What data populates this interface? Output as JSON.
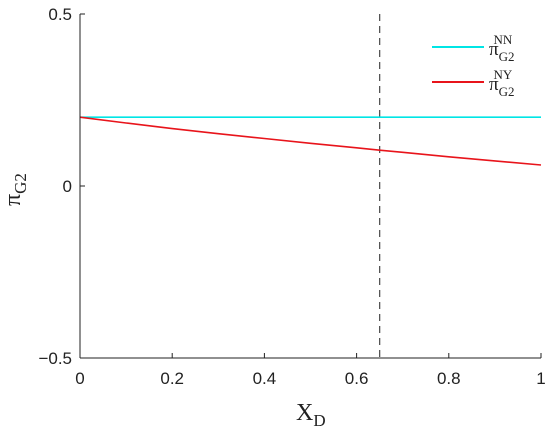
{
  "chart_data": {
    "type": "line",
    "xlabel": {
      "main": "X",
      "sub": "D"
    },
    "ylabel": {
      "main": "π",
      "sub": "G2"
    },
    "xlim": [
      0,
      1
    ],
    "ylim": [
      -0.5,
      0.5
    ],
    "x_ticks": [
      0,
      0.2,
      0.4,
      0.6,
      0.8,
      1
    ],
    "x_tick_labels": [
      "0",
      "0.2",
      "0.4",
      "0.6",
      "0.8",
      "1"
    ],
    "y_ticks": [
      -0.5,
      0,
      0.5
    ],
    "y_tick_labels": [
      "−0.5",
      "0",
      "0.5"
    ],
    "grid": false,
    "legend_position": "top-right",
    "series": [
      {
        "legend": {
          "main": "π",
          "sub": "G2",
          "sup": "NN"
        },
        "color": "#00e5e5",
        "x": [
          0,
          0.1,
          0.2,
          0.3,
          0.4,
          0.5,
          0.6,
          0.7,
          0.8,
          0.9,
          1
        ],
        "y": [
          0.2,
          0.2,
          0.2,
          0.2,
          0.2,
          0.2,
          0.2,
          0.2,
          0.2,
          0.2,
          0.2
        ]
      },
      {
        "legend": {
          "main": "π",
          "sub": "G2",
          "sup": "NY"
        },
        "color": "#e8141b",
        "x": [
          0,
          0.1,
          0.2,
          0.3,
          0.4,
          0.5,
          0.6,
          0.65,
          0.7,
          0.8,
          0.9,
          1
        ],
        "y": [
          0.2,
          0.183,
          0.167,
          0.152,
          0.138,
          0.124,
          0.111,
          0.104,
          0.098,
          0.085,
          0.073,
          0.061
        ]
      }
    ],
    "vertical_line": {
      "x": 0.65,
      "style": "dashed",
      "color": "#555555"
    }
  }
}
